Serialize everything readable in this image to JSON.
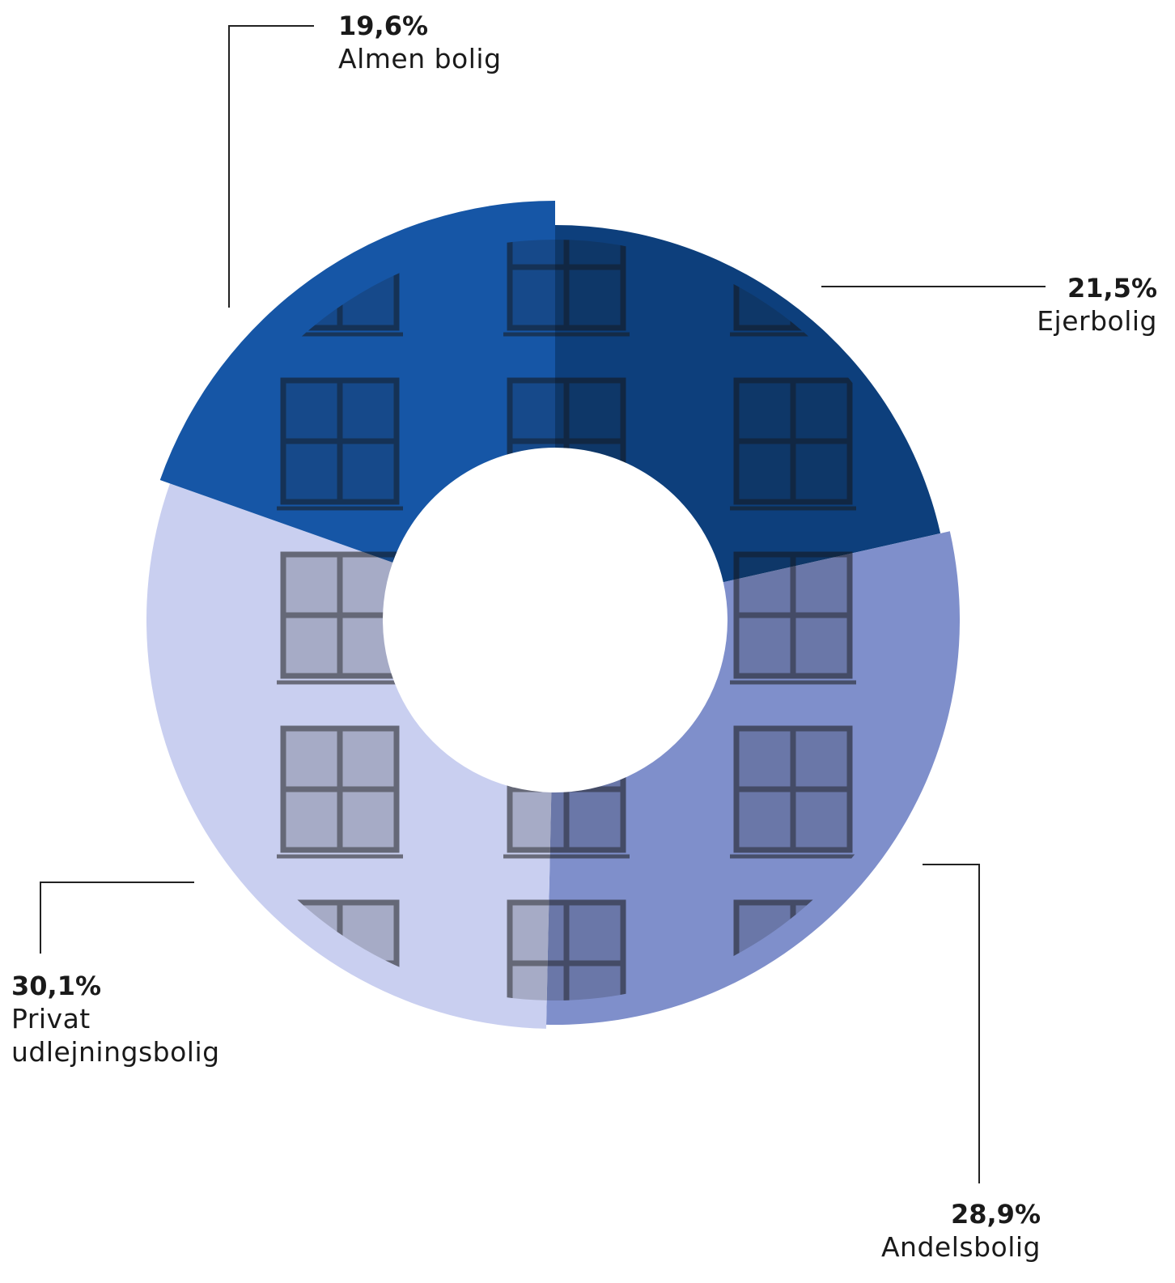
{
  "chart_data": {
    "type": "pie",
    "variant": "donut",
    "slices": [
      {
        "label": "Ejerbolig",
        "value": 21.5,
        "value_label": "21,5%",
        "color": "#0d3f7c"
      },
      {
        "label": "Andelsbolig",
        "value": 28.9,
        "value_label": "28,9%",
        "color": "#7f8fcb"
      },
      {
        "label": "Privat udlejningsbolig",
        "value": 30.1,
        "value_label": "30,1%",
        "color": "#c9cff0"
      },
      {
        "label": "Almen bolig",
        "value": 19.6,
        "value_label": "19,6%",
        "color": "#1656a6"
      }
    ],
    "background_image": "building-facade-photo"
  },
  "labels": {
    "almen_pct": "19,6%",
    "almen_name": "Almen bolig",
    "ejer_pct": "21,5%",
    "ejer_name": "Ejerbolig",
    "andel_pct": "28,9%",
    "andel_name": "Andelsbolig",
    "privat_pct": "30,1%",
    "privat_name": "Privat udlejningsbolig"
  }
}
